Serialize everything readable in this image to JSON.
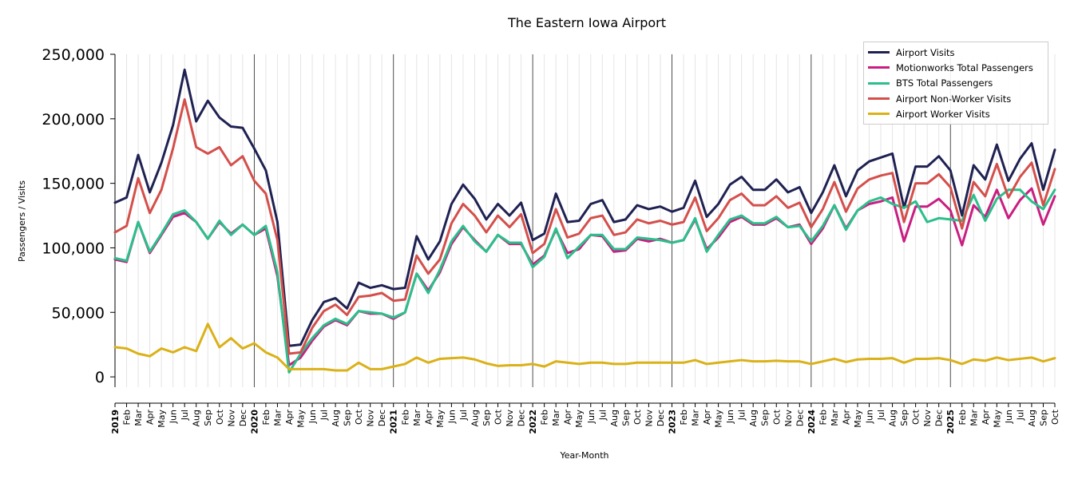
{
  "chart_data": {
    "type": "line",
    "title": "The Eastern Iowa Airport",
    "xlabel": "Year-Month",
    "ylabel": "Passengers / Visits",
    "ylim": [
      -8000,
      250000
    ],
    "yticks": [
      0,
      50000,
      100000,
      150000,
      200000,
      250000
    ],
    "ytick_labels": [
      "0",
      "50,000",
      "100,000",
      "150,000",
      "200,000",
      "250,000"
    ],
    "years": [
      "2019",
      "2020",
      "2021",
      "2022",
      "2023",
      "2024",
      "2025"
    ],
    "month_labels": [
      "Feb",
      "Mar",
      "Apr",
      "May",
      "Jun",
      "Jul",
      "Aug",
      "Sep",
      "Oct",
      "Nov",
      "Dec"
    ],
    "x": [
      "2019-01",
      "2019-02",
      "2019-03",
      "2019-04",
      "2019-05",
      "2019-06",
      "2019-07",
      "2019-08",
      "2019-09",
      "2019-10",
      "2019-11",
      "2019-12",
      "2020-01",
      "2020-02",
      "2020-03",
      "2020-04",
      "2020-05",
      "2020-06",
      "2020-07",
      "2020-08",
      "2020-09",
      "2020-10",
      "2020-11",
      "2020-12",
      "2021-01",
      "2021-02",
      "2021-03",
      "2021-04",
      "2021-05",
      "2021-06",
      "2021-07",
      "2021-08",
      "2021-09",
      "2021-10",
      "2021-11",
      "2021-12",
      "2022-01",
      "2022-02",
      "2022-03",
      "2022-04",
      "2022-05",
      "2022-06",
      "2022-07",
      "2022-08",
      "2022-09",
      "2022-10",
      "2022-11",
      "2022-12",
      "2023-01",
      "2023-02",
      "2023-03",
      "2023-04",
      "2023-05",
      "2023-06",
      "2023-07",
      "2023-08",
      "2023-09",
      "2023-10",
      "2023-11",
      "2023-12",
      "2024-01",
      "2024-02",
      "2024-03",
      "2024-04",
      "2024-05",
      "2024-06",
      "2024-07",
      "2024-08",
      "2024-09",
      "2024-10",
      "2024-11",
      "2024-12",
      "2025-01",
      "2025-02",
      "2025-03",
      "2025-04",
      "2025-05",
      "2025-06",
      "2025-07",
      "2025-08",
      "2025-09",
      "2025-10"
    ],
    "legend_position": "top-right",
    "grid": "vertical monthly gridlines, darker at year starts",
    "series": [
      {
        "name": "Airport Visits",
        "color": "#1f2152",
        "values": [
          135000,
          139000,
          172000,
          143000,
          166000,
          195000,
          238000,
          198000,
          214000,
          201000,
          194000,
          193000,
          177000,
          160000,
          120000,
          24000,
          25000,
          44000,
          58000,
          61000,
          53000,
          73000,
          69000,
          71000,
          68000,
          69000,
          109000,
          91000,
          105000,
          134000,
          149000,
          138000,
          122000,
          134000,
          125000,
          135000,
          106000,
          111000,
          142000,
          120000,
          121000,
          134000,
          137000,
          120000,
          122000,
          133000,
          130000,
          132000,
          128000,
          131000,
          152000,
          124000,
          134000,
          149000,
          155000,
          145000,
          145000,
          153000,
          143000,
          147000,
          127000,
          143000,
          164000,
          140000,
          160000,
          167000,
          170000,
          173000,
          131000,
          163000,
          163000,
          171000,
          160000,
          125000,
          164000,
          153000,
          180000,
          152000,
          169000,
          181000,
          145000,
          176000
        ]
      },
      {
        "name": "Motionworks Total Passengers",
        "color": "#c91e82",
        "values": [
          91000,
          89000,
          120000,
          96000,
          110000,
          124000,
          127000,
          120000,
          107000,
          120000,
          111000,
          118000,
          110000,
          115000,
          78000,
          9000,
          15000,
          28000,
          39000,
          44000,
          40000,
          51000,
          49000,
          49000,
          45000,
          50000,
          80000,
          67000,
          81000,
          103000,
          116000,
          106000,
          97000,
          110000,
          103000,
          103000,
          87000,
          94000,
          114000,
          96000,
          99000,
          110000,
          109000,
          97000,
          98000,
          107000,
          105000,
          107000,
          104000,
          106000,
          122000,
          99000,
          108000,
          120000,
          124000,
          118000,
          118000,
          123000,
          116000,
          118000,
          103000,
          115000,
          133000,
          115000,
          129000,
          134000,
          136000,
          139000,
          105000,
          132000,
          132000,
          138000,
          129000,
          102000,
          133000,
          124000,
          145000,
          123000,
          137000,
          146000,
          118000,
          140000
        ]
      },
      {
        "name": "BTS Total Passengers",
        "color": "#2abf8b",
        "values": [
          92000,
          90000,
          120000,
          97000,
          111000,
          126000,
          129000,
          120000,
          107000,
          121000,
          110000,
          118000,
          110000,
          117000,
          81000,
          3500,
          18000,
          30000,
          40000,
          45000,
          41000,
          51000,
          50000,
          49000,
          46000,
          50000,
          80000,
          65000,
          83000,
          105000,
          117000,
          105000,
          97000,
          110000,
          104000,
          104000,
          85000,
          93000,
          115000,
          92000,
          101000,
          110000,
          110000,
          99000,
          99000,
          108000,
          107000,
          106000,
          104000,
          106000,
          123000,
          97000,
          110000,
          122000,
          125000,
          119000,
          119000,
          124000,
          116000,
          117000,
          105000,
          117000,
          133000,
          114000,
          129000,
          136000,
          139000,
          134000,
          131000,
          136000,
          120000,
          123000,
          122000,
          121000,
          141000,
          121000,
          138000,
          145000,
          145000,
          136000,
          130000,
          145000
        ]
      },
      {
        "name": "Airport Non-Worker Visits",
        "color": "#d44f4b",
        "values": [
          112000,
          117000,
          154000,
          127000,
          145000,
          177000,
          215000,
          178000,
          173000,
          178000,
          164000,
          171000,
          152000,
          142000,
          106000,
          18000,
          19000,
          38000,
          51000,
          56000,
          48000,
          62000,
          63000,
          65000,
          59000,
          60000,
          94000,
          80000,
          91000,
          119000,
          134000,
          125000,
          112000,
          125000,
          116000,
          126000,
          96000,
          103000,
          130000,
          108000,
          111000,
          123000,
          125000,
          110000,
          112000,
          122000,
          119000,
          121000,
          118000,
          120000,
          139000,
          113000,
          123000,
          137000,
          142000,
          133000,
          133000,
          140000,
          131000,
          135000,
          116000,
          130000,
          151000,
          128000,
          146000,
          153000,
          156000,
          158000,
          120000,
          150000,
          150000,
          157000,
          147000,
          115000,
          151000,
          140000,
          165000,
          139000,
          155000,
          166000,
          133000,
          161000
        ]
      },
      {
        "name": "Airport Worker Visits",
        "color": "#dbb118",
        "values": [
          23000,
          22000,
          18000,
          16000,
          22000,
          19000,
          23000,
          20000,
          41000,
          23000,
          30000,
          22000,
          26000,
          19000,
          15000,
          6000,
          6000,
          6000,
          6000,
          5000,
          5000,
          11000,
          6000,
          6000,
          8000,
          10000,
          15000,
          11000,
          14000,
          14500,
          15000,
          13500,
          10500,
          8500,
          9000,
          9000,
          10000,
          8000,
          12000,
          11000,
          10000,
          11000,
          11000,
          10000,
          10000,
          11000,
          11000,
          11000,
          11000,
          11000,
          13000,
          10000,
          11000,
          12000,
          13000,
          12000,
          12000,
          12500,
          12000,
          12000,
          10000,
          12000,
          14000,
          11500,
          13500,
          14000,
          14000,
          14500,
          11000,
          14000,
          14000,
          14500,
          13000,
          10000,
          13500,
          12500,
          15000,
          13000,
          14000,
          15000,
          12000,
          14500
        ]
      }
    ]
  }
}
